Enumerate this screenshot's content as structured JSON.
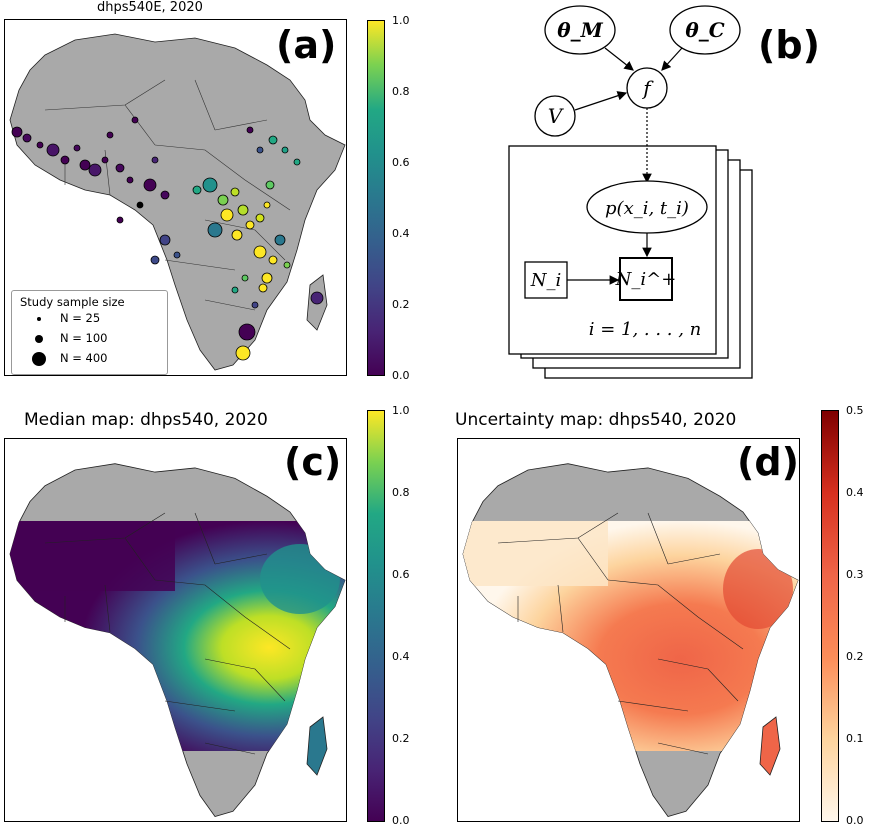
{
  "panel_a": {
    "title": "dhps540E, 2020",
    "label": "(a)",
    "legend": {
      "title": "Study sample size",
      "items": [
        "N = 25",
        "N = 100",
        "N = 400"
      ]
    },
    "colorbar_ticks": [
      "1.0",
      "0.8",
      "0.6",
      "0.4",
      "0.2",
      "0.0"
    ],
    "colormap": "viridis"
  },
  "panel_b": {
    "label": "(b)",
    "nodes": {
      "theta_m": "θ_M",
      "theta_c": "θ_C",
      "f": "f",
      "v": "V",
      "p": "p(x_i, t_i)",
      "n_i": "N_i",
      "n_i_plus": "N_i^+",
      "plate": "i = 1, . . . , n"
    }
  },
  "panel_c": {
    "title": "Median map: dhps540, 2020",
    "label": "(c)",
    "colorbar_ticks": [
      "1.0",
      "0.8",
      "0.6",
      "0.4",
      "0.2",
      "0.0"
    ],
    "colormap": "viridis"
  },
  "panel_d": {
    "title": "Uncertainty map: dhps540, 2020",
    "label": "(d)",
    "colorbar_ticks": [
      "0.5",
      "0.4",
      "0.3",
      "0.2",
      "0.1",
      "0.0"
    ],
    "colormap": "OrRd"
  },
  "colors": {
    "land_gray": "#a9a9a9",
    "viridis_dark": "#440154",
    "viridis_yellow": "#fde725",
    "orrd_dark": "#7f0000",
    "orrd_light": "#fff7ec"
  }
}
